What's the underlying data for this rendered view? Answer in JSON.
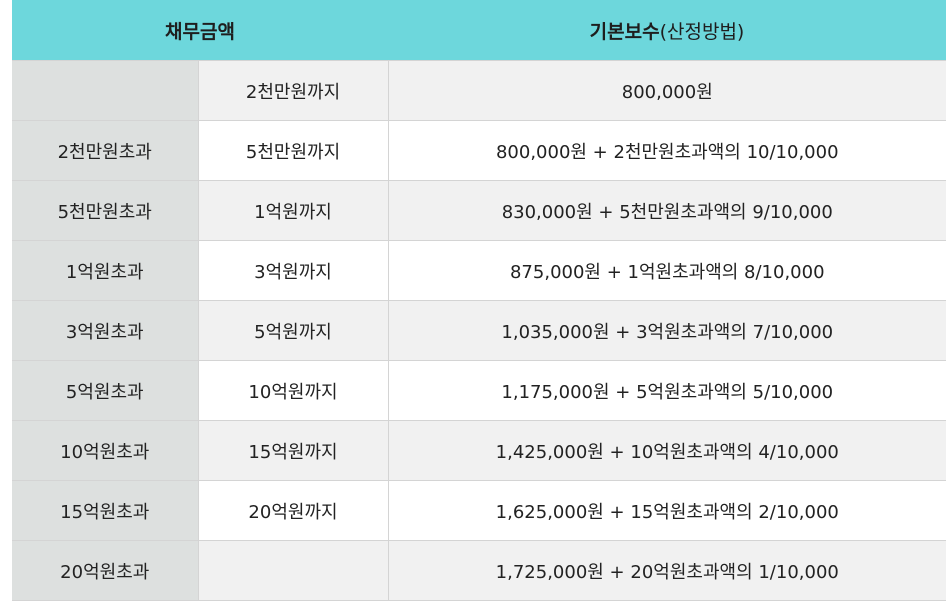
{
  "header": {
    "debt_amount": "채무금액",
    "base_fee": "기본보수",
    "base_fee_sub": "(산정방법)"
  },
  "rows": [
    {
      "over": "",
      "upto": "2천만원까지",
      "fee": "800,000원"
    },
    {
      "over": "2천만원초과",
      "upto": "5천만원까지",
      "fee": "800,000원 + 2천만원초과액의 10/10,000"
    },
    {
      "over": "5천만원초과",
      "upto": "1억원까지",
      "fee": "830,000원 + 5천만원초과액의 9/10,000"
    },
    {
      "over": "1억원초과",
      "upto": "3억원까지",
      "fee": "875,000원 + 1억원초과액의 8/10,000"
    },
    {
      "over": "3억원초과",
      "upto": "5억원까지",
      "fee": "1,035,000원 + 3억원초과액의 7/10,000"
    },
    {
      "over": "5억원초과",
      "upto": "10억원까지",
      "fee": "1,175,000원 + 5억원초과액의 5/10,000"
    },
    {
      "over": "10억원초과",
      "upto": "15억원까지",
      "fee": "1,425,000원 + 10억원초과액의 4/10,000"
    },
    {
      "over": "15억원초과",
      "upto": "20억원까지",
      "fee": "1,625,000원 + 15억원초과액의 2/10,000"
    },
    {
      "over": "20억원초과",
      "upto": "",
      "fee": "1,725,000원 + 20억원초과액의 1/10,000"
    }
  ],
  "colors": {
    "header_bg": "#6dd7dc",
    "first_col_bg": "#dde0df",
    "stripe_bg": "#f1f1f1"
  }
}
